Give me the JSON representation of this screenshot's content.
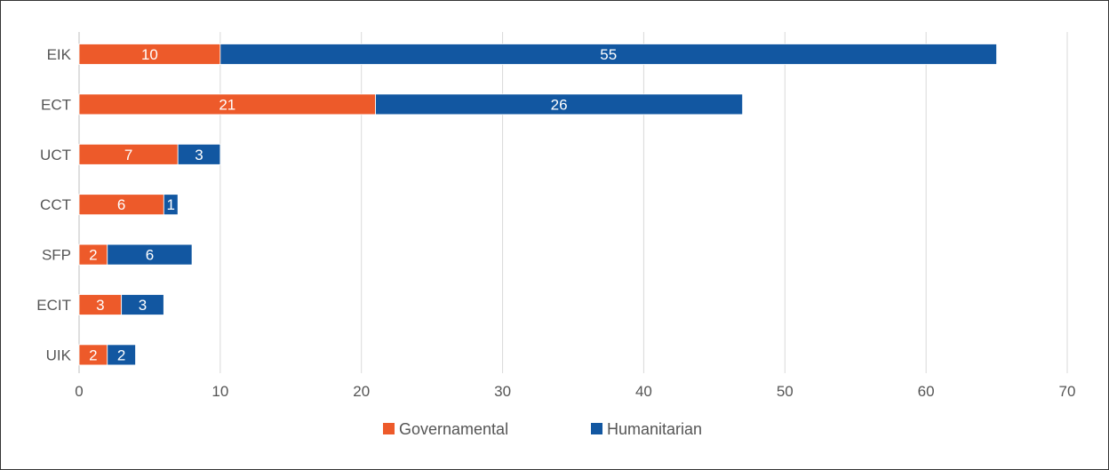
{
  "chart_data": {
    "type": "bar",
    "orientation": "horizontal",
    "stacked": true,
    "categories": [
      "EIK",
      "ECT",
      "UCT",
      "CCT",
      "SFP",
      "ECIT",
      "UIK"
    ],
    "series": [
      {
        "name": "Governamental",
        "color": "#ED5A2A",
        "values": [
          10,
          21,
          7,
          6,
          2,
          3,
          2
        ]
      },
      {
        "name": "Humanitarian",
        "color": "#1257A1",
        "values": [
          55,
          26,
          3,
          1,
          6,
          3,
          2
        ]
      }
    ],
    "xlim": [
      0,
      70
    ],
    "xticks": [
      0,
      10,
      20,
      30,
      40,
      50,
      60,
      70
    ],
    "grid": true,
    "legend": "bottom-center",
    "title": "",
    "xlabel": "",
    "ylabel": ""
  }
}
